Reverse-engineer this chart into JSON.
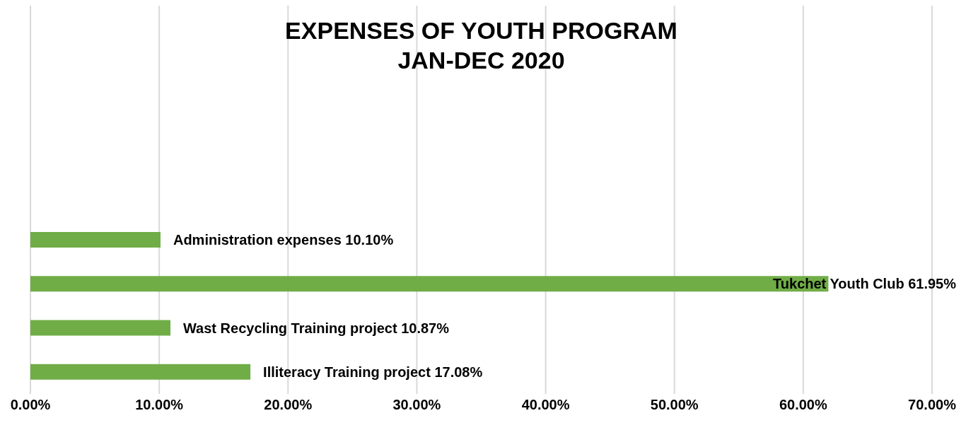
{
  "chart_data": {
    "type": "bar",
    "orientation": "horizontal",
    "title": "EXPENSES OF YOUTH PROGRAM\nJAN-DEC 2020",
    "categories": [
      "Administration expenses",
      "Tukchet Youth Club",
      "Wast Recycling Training project",
      "Illiteracy Training project"
    ],
    "values": [
      10.1,
      61.95,
      10.87,
      17.08
    ],
    "value_labels": [
      "10.10%",
      "61.95%",
      "10.87%",
      "17.08%"
    ],
    "color": "#70ad47",
    "xlim": [
      0,
      70
    ],
    "xticks": [
      {
        "value": 0,
        "label": "0.00%"
      },
      {
        "value": 10,
        "label": "10.00%"
      },
      {
        "value": 20,
        "label": "20.00%"
      },
      {
        "value": 30,
        "label": "30.00%"
      },
      {
        "value": 40,
        "label": "40.00%"
      },
      {
        "value": 50,
        "label": "50.00%"
      },
      {
        "value": 60,
        "label": "60.00%"
      },
      {
        "value": 70,
        "label": "70.00%"
      }
    ],
    "grid": "x",
    "legend": false
  }
}
